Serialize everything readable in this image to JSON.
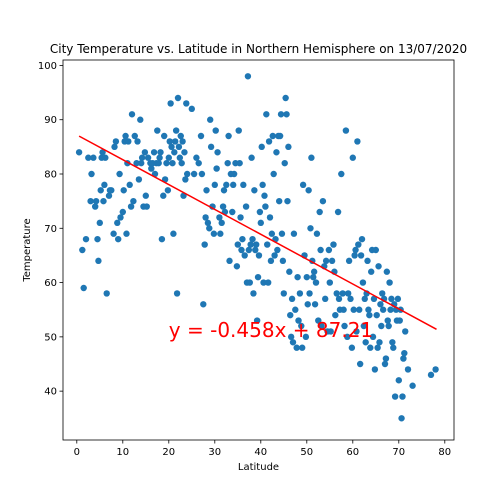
{
  "chart_data": {
    "type": "scatter",
    "title": "City Temperature vs. Latitude in Northern Hemisphere on 13/07/2020",
    "xlabel": "Latitude",
    "ylabel": "Temperature",
    "xlim": [
      -3,
      82
    ],
    "ylim": [
      31,
      101
    ],
    "xticks": [
      0,
      10,
      20,
      30,
      40,
      50,
      60,
      70,
      80
    ],
    "yticks": [
      40,
      50,
      60,
      70,
      80,
      90,
      100
    ],
    "grid": false,
    "colors": {
      "points": "#1f77b4",
      "regression": "#ff0000"
    },
    "regression": {
      "slope": -0.458,
      "intercept": 87.21,
      "x_range": [
        0.5,
        78.2
      ],
      "equation": "y = -0.458x + 87.21",
      "equation_anchor": [
        20,
        50
      ]
    },
    "points": [
      [
        0.5,
        84
      ],
      [
        1.2,
        66
      ],
      [
        1.5,
        59
      ],
      [
        2,
        68
      ],
      [
        2.5,
        83
      ],
      [
        3,
        75
      ],
      [
        3.2,
        80
      ],
      [
        3.6,
        83
      ],
      [
        4,
        74
      ],
      [
        4.2,
        75
      ],
      [
        4.5,
        68
      ],
      [
        4.7,
        64
      ],
      [
        5,
        71
      ],
      [
        5.2,
        77
      ],
      [
        5.4,
        83
      ],
      [
        5.6,
        84
      ],
      [
        5.8,
        75
      ],
      [
        6,
        78
      ],
      [
        6.2,
        83
      ],
      [
        6.5,
        58
      ],
      [
        7,
        76
      ],
      [
        7.2,
        77
      ],
      [
        7.5,
        77
      ],
      [
        8,
        69
      ],
      [
        8.2,
        85
      ],
      [
        8.5,
        86
      ],
      [
        8.8,
        71
      ],
      [
        9,
        68
      ],
      [
        9.3,
        80
      ],
      [
        9.5,
        72
      ],
      [
        10,
        73
      ],
      [
        10.2,
        77
      ],
      [
        10.4,
        86
      ],
      [
        10.6,
        87
      ],
      [
        10.8,
        69
      ],
      [
        11,
        82
      ],
      [
        11.2,
        86
      ],
      [
        11.5,
        78
      ],
      [
        11.8,
        74
      ],
      [
        12,
        91
      ],
      [
        12.3,
        75
      ],
      [
        12.6,
        87
      ],
      [
        13,
        82
      ],
      [
        13.2,
        86
      ],
      [
        13.5,
        79
      ],
      [
        13.8,
        90
      ],
      [
        14,
        82
      ],
      [
        14.2,
        83
      ],
      [
        14.5,
        74
      ],
      [
        14.8,
        84
      ],
      [
        15,
        76
      ],
      [
        15.2,
        74
      ],
      [
        15.5,
        83
      ],
      [
        16,
        82
      ],
      [
        16.2,
        81
      ],
      [
        16.5,
        82
      ],
      [
        16.8,
        84
      ],
      [
        17,
        80
      ],
      [
        17.3,
        82
      ],
      [
        17.5,
        88
      ],
      [
        17.8,
        82
      ],
      [
        18,
        83
      ],
      [
        18.2,
        84
      ],
      [
        18.5,
        68
      ],
      [
        18.8,
        76
      ],
      [
        19,
        87
      ],
      [
        19.2,
        79
      ],
      [
        19.5,
        82
      ],
      [
        19.8,
        77
      ],
      [
        20,
        83
      ],
      [
        20.2,
        86
      ],
      [
        20.4,
        93
      ],
      [
        20.6,
        85
      ],
      [
        20.8,
        82
      ],
      [
        21,
        69
      ],
      [
        21.2,
        84
      ],
      [
        21.4,
        86
      ],
      [
        21.6,
        88
      ],
      [
        21.8,
        58
      ],
      [
        22,
        94
      ],
      [
        22.2,
        85
      ],
      [
        22.4,
        83
      ],
      [
        22.6,
        87
      ],
      [
        22.8,
        82
      ],
      [
        23,
        86
      ],
      [
        23.2,
        76
      ],
      [
        23.4,
        84
      ],
      [
        23.6,
        79
      ],
      [
        23.8,
        93
      ],
      [
        24,
        80
      ],
      [
        25,
        92
      ],
      [
        25.5,
        80
      ],
      [
        26,
        83
      ],
      [
        26.5,
        82
      ],
      [
        27,
        87
      ],
      [
        27.2,
        80
      ],
      [
        27.5,
        56
      ],
      [
        27.8,
        67
      ],
      [
        28,
        72
      ],
      [
        28.2,
        77
      ],
      [
        28.5,
        71
      ],
      [
        28.8,
        70
      ],
      [
        29,
        90
      ],
      [
        29.2,
        85
      ],
      [
        29.5,
        74
      ],
      [
        29.8,
        69
      ],
      [
        30,
        78
      ],
      [
        30.2,
        88
      ],
      [
        30.4,
        81
      ],
      [
        30.6,
        84
      ],
      [
        31,
        72
      ],
      [
        31.2,
        69
      ],
      [
        31.5,
        71
      ],
      [
        31.8,
        74
      ],
      [
        32,
        77
      ],
      [
        32.2,
        73
      ],
      [
        32.5,
        78
      ],
      [
        32.8,
        82
      ],
      [
        33,
        87
      ],
      [
        33.2,
        64
      ],
      [
        33.5,
        80
      ],
      [
        33.8,
        73
      ],
      [
        34,
        78
      ],
      [
        34.2,
        80
      ],
      [
        34.5,
        82
      ],
      [
        34.8,
        63
      ],
      [
        35,
        67
      ],
      [
        35.2,
        88
      ],
      [
        35.4,
        82
      ],
      [
        35.6,
        72
      ],
      [
        35.8,
        66
      ],
      [
        36,
        68
      ],
      [
        36.2,
        78
      ],
      [
        36.5,
        65
      ],
      [
        36.8,
        74
      ],
      [
        37,
        60
      ],
      [
        37.2,
        98
      ],
      [
        37.4,
        66
      ],
      [
        37.6,
        60
      ],
      [
        37.8,
        67
      ],
      [
        38,
        83
      ],
      [
        38.2,
        68
      ],
      [
        38.4,
        58
      ],
      [
        38.6,
        77
      ],
      [
        38.8,
        66
      ],
      [
        39,
        67
      ],
      [
        39.2,
        53
      ],
      [
        39.4,
        61
      ],
      [
        39.6,
        65
      ],
      [
        39.8,
        73
      ],
      [
        40,
        71
      ],
      [
        40.2,
        85
      ],
      [
        40.4,
        78
      ],
      [
        40.6,
        60
      ],
      [
        40.8,
        76
      ],
      [
        41,
        74
      ],
      [
        41.2,
        91
      ],
      [
        41.4,
        67
      ],
      [
        41.6,
        60
      ],
      [
        41.8,
        86
      ],
      [
        42,
        72
      ],
      [
        42.2,
        64
      ],
      [
        42.4,
        69
      ],
      [
        42.6,
        87
      ],
      [
        42.8,
        80
      ],
      [
        43,
        65
      ],
      [
        43.2,
        68
      ],
      [
        43.4,
        84
      ],
      [
        43.6,
        66
      ],
      [
        43.8,
        87
      ],
      [
        44,
        75
      ],
      [
        44.2,
        87
      ],
      [
        44.4,
        91
      ],
      [
        44.6,
        69
      ],
      [
        44.8,
        64
      ],
      [
        45,
        58
      ],
      [
        45.2,
        82
      ],
      [
        45.4,
        94
      ],
      [
        45.6,
        91
      ],
      [
        45.8,
        75
      ],
      [
        46,
        85
      ],
      [
        46.2,
        62
      ],
      [
        46.4,
        54
      ],
      [
        46.6,
        50
      ],
      [
        46.8,
        57
      ],
      [
        47,
        49
      ],
      [
        47.2,
        69
      ],
      [
        47.5,
        55
      ],
      [
        47.8,
        48
      ],
      [
        48,
        61
      ],
      [
        48.2,
        53
      ],
      [
        48.5,
        58
      ],
      [
        48.8,
        52
      ],
      [
        49,
        48
      ],
      [
        49.2,
        78
      ],
      [
        49.5,
        65
      ],
      [
        49.8,
        50
      ],
      [
        50,
        61
      ],
      [
        50.2,
        56
      ],
      [
        50.4,
        77
      ],
      [
        50.6,
        58
      ],
      [
        50.8,
        70
      ],
      [
        51,
        83
      ],
      [
        51.2,
        64
      ],
      [
        51.4,
        61
      ],
      [
        51.6,
        62
      ],
      [
        51.8,
        56
      ],
      [
        52,
        60
      ],
      [
        52.2,
        69
      ],
      [
        52.5,
        53
      ],
      [
        52.8,
        73
      ],
      [
        53,
        66
      ],
      [
        53.2,
        52
      ],
      [
        53.5,
        75
      ],
      [
        53.8,
        63
      ],
      [
        54,
        57
      ],
      [
        54.2,
        64
      ],
      [
        54.5,
        51
      ],
      [
        54.8,
        66
      ],
      [
        55,
        60
      ],
      [
        55.2,
        51
      ],
      [
        55.5,
        64
      ],
      [
        55.8,
        67
      ],
      [
        56,
        62
      ],
      [
        56.2,
        54
      ],
      [
        56.5,
        58
      ],
      [
        56.8,
        73
      ],
      [
        57,
        57
      ],
      [
        57.2,
        55
      ],
      [
        57.5,
        80
      ],
      [
        57.8,
        58
      ],
      [
        58,
        55
      ],
      [
        58.2,
        52
      ],
      [
        58.5,
        88
      ],
      [
        58.8,
        50
      ],
      [
        59,
        58
      ],
      [
        59.2,
        64
      ],
      [
        59.5,
        57
      ],
      [
        59.8,
        48
      ],
      [
        60,
        83
      ],
      [
        60.2,
        55
      ],
      [
        60.4,
        65
      ],
      [
        60.6,
        66
      ],
      [
        60.8,
        51
      ],
      [
        61,
        86
      ],
      [
        61.2,
        67
      ],
      [
        61.4,
        55
      ],
      [
        61.6,
        45
      ],
      [
        61.8,
        65
      ],
      [
        62,
        68
      ],
      [
        62.2,
        60
      ],
      [
        62.4,
        52
      ],
      [
        62.6,
        57
      ],
      [
        62.8,
        49
      ],
      [
        63,
        58
      ],
      [
        63.2,
        64
      ],
      [
        63.4,
        55
      ],
      [
        63.6,
        54
      ],
      [
        63.8,
        48
      ],
      [
        64,
        62
      ],
      [
        64.2,
        66
      ],
      [
        64.4,
        50
      ],
      [
        64.6,
        57
      ],
      [
        64.8,
        44
      ],
      [
        65,
        66
      ],
      [
        65.2,
        54
      ],
      [
        65.4,
        48
      ],
      [
        65.6,
        63
      ],
      [
        65.8,
        49
      ],
      [
        66,
        56
      ],
      [
        66.2,
        52
      ],
      [
        66.4,
        58
      ],
      [
        66.6,
        55
      ],
      [
        66.8,
        57
      ],
      [
        67,
        45
      ],
      [
        67.2,
        46
      ],
      [
        67.4,
        62
      ],
      [
        67.6,
        53
      ],
      [
        67.8,
        52
      ],
      [
        68,
        60
      ],
      [
        68.2,
        55
      ],
      [
        68.4,
        57
      ],
      [
        68.6,
        49
      ],
      [
        68.8,
        48
      ],
      [
        69,
        56
      ],
      [
        69.2,
        39
      ],
      [
        69.4,
        55
      ],
      [
        69.6,
        53
      ],
      [
        69.8,
        57
      ],
      [
        70,
        42
      ],
      [
        70.2,
        53
      ],
      [
        70.4,
        55
      ],
      [
        70.6,
        35
      ],
      [
        70.8,
        39
      ],
      [
        71,
        46
      ],
      [
        71.2,
        47
      ],
      [
        71.4,
        51
      ],
      [
        72,
        44
      ],
      [
        73,
        41
      ],
      [
        77,
        43
      ],
      [
        78,
        44
      ]
    ]
  }
}
